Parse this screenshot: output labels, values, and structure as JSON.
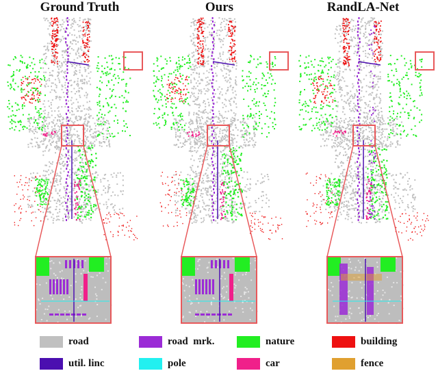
{
  "panels": [
    {
      "title": "Ground Truth",
      "mode": "gt"
    },
    {
      "title": "Ours",
      "mode": "ours"
    },
    {
      "title": "RandLA-Net",
      "mode": "randla"
    }
  ],
  "legend": [
    {
      "label": "road",
      "color": "#c0c0c0"
    },
    {
      "label": "road  mrk.",
      "color": "#9b2bd6"
    },
    {
      "label": "nature",
      "color": "#22ee22"
    },
    {
      "label": "building",
      "color": "#ee1111"
    },
    {
      "label": "util. linc",
      "color": "#4b0fb0"
    },
    {
      "label": "pole",
      "color": "#22f0f0"
    },
    {
      "label": "car",
      "color": "#f0208a"
    },
    {
      "label": "fence",
      "color": "#e0a030"
    }
  ],
  "highlight_color": "#e8585a"
}
